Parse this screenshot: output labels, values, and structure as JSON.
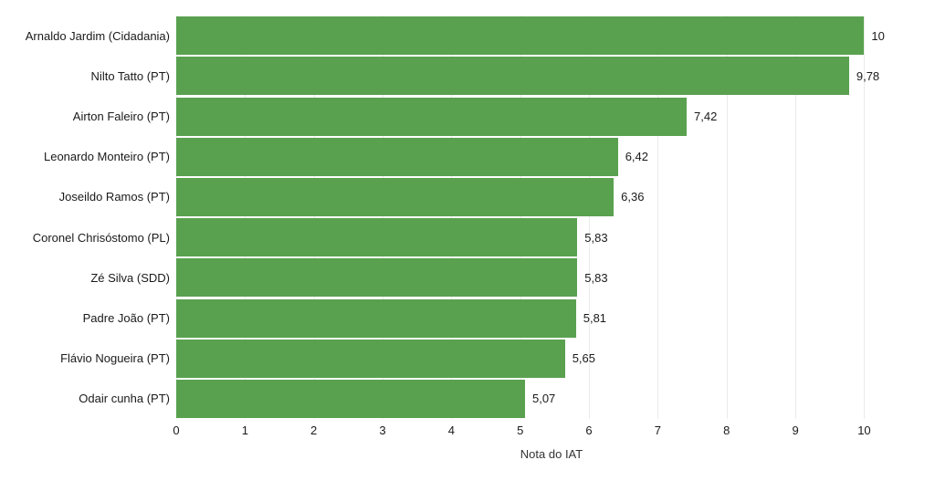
{
  "chart_data": {
    "type": "bar",
    "orientation": "horizontal",
    "title": "",
    "xlabel": "Nota do IAT",
    "ylabel": "",
    "categories": [
      "Arnaldo Jardim (Cidadania)",
      "Nilto Tatto (PT)",
      "Airton Faleiro (PT)",
      "Leonardo Monteiro (PT)",
      "Joseildo Ramos (PT)",
      "Coronel Chrisóstomo (PL)",
      "Zé Silva (SDD)",
      "Padre João (PT)",
      "Flávio Nogueira (PT)",
      "Odair cunha (PT)"
    ],
    "values": [
      10,
      9.78,
      7.42,
      6.42,
      6.36,
      5.83,
      5.83,
      5.81,
      5.65,
      5.07
    ],
    "value_labels": [
      "10",
      "9,78",
      "7,42",
      "6,42",
      "6,36",
      "5,83",
      "5,83",
      "5,81",
      "5,65",
      "5,07"
    ],
    "xticks": [
      0,
      1,
      2,
      3,
      4,
      5,
      6,
      7,
      8,
      9,
      10
    ],
    "xlim": [
      0,
      10.91
    ],
    "grid": true,
    "legend": false,
    "bar_color": "#59a14f",
    "gridline_color": "#ebebeb",
    "background_color": "#ffffff"
  }
}
